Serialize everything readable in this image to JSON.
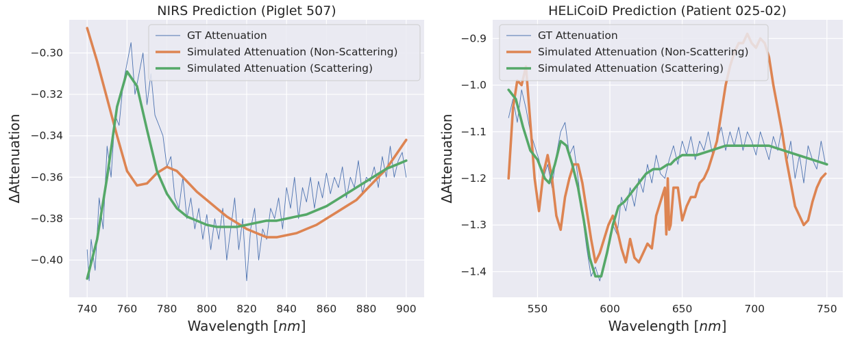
{
  "chart_data": [
    {
      "type": "line",
      "title": "NIRS Prediction (Piglet 507)",
      "xlabel_prefix": "Wavelength [",
      "xlabel_unit": "nm",
      "xlabel_suffix": "]",
      "ylabel": "ΔAttenuation",
      "xlim": [
        731,
        909
      ],
      "ylim": [
        -0.418,
        -0.284
      ],
      "xticks": [
        740,
        760,
        780,
        800,
        820,
        840,
        860,
        880,
        900
      ],
      "xtick_labels": [
        "740",
        "760",
        "780",
        "800",
        "820",
        "840",
        "860",
        "880",
        "900"
      ],
      "yticks": [
        -0.4,
        -0.38,
        -0.36,
        -0.34,
        -0.32,
        -0.3
      ],
      "ytick_labels": [
        "−0.40",
        "−0.38",
        "−0.36",
        "−0.34",
        "−0.32",
        "−0.30"
      ],
      "grid": true,
      "legend_position": "top-right",
      "series": [
        {
          "name": "GT Attenuation",
          "color": "#4c72b0",
          "style": "thin",
          "x": [
            740,
            741,
            742,
            744,
            746,
            748,
            750,
            752,
            754,
            756,
            758,
            760,
            762,
            764,
            766,
            768,
            770,
            772,
            774,
            776,
            778,
            780,
            782,
            784,
            786,
            788,
            790,
            792,
            794,
            796,
            798,
            800,
            802,
            804,
            806,
            808,
            810,
            812,
            814,
            816,
            818,
            820,
            822,
            824,
            826,
            828,
            830,
            832,
            834,
            836,
            838,
            840,
            842,
            844,
            846,
            848,
            850,
            852,
            854,
            856,
            858,
            860,
            862,
            864,
            866,
            868,
            870,
            872,
            874,
            876,
            878,
            880,
            882,
            884,
            886,
            888,
            890,
            892,
            894,
            896,
            898,
            900
          ],
          "y": [
            -0.395,
            -0.41,
            -0.39,
            -0.405,
            -0.37,
            -0.385,
            -0.345,
            -0.36,
            -0.33,
            -0.335,
            -0.315,
            -0.305,
            -0.295,
            -0.32,
            -0.31,
            -0.3,
            -0.325,
            -0.31,
            -0.33,
            -0.335,
            -0.34,
            -0.355,
            -0.35,
            -0.37,
            -0.375,
            -0.36,
            -0.38,
            -0.37,
            -0.385,
            -0.375,
            -0.39,
            -0.378,
            -0.395,
            -0.38,
            -0.39,
            -0.375,
            -0.4,
            -0.385,
            -0.37,
            -0.395,
            -0.38,
            -0.41,
            -0.385,
            -0.375,
            -0.4,
            -0.385,
            -0.39,
            -0.375,
            -0.38,
            -0.37,
            -0.385,
            -0.365,
            -0.375,
            -0.36,
            -0.38,
            -0.365,
            -0.372,
            -0.36,
            -0.375,
            -0.362,
            -0.37,
            -0.358,
            -0.368,
            -0.36,
            -0.365,
            -0.355,
            -0.37,
            -0.36,
            -0.365,
            -0.352,
            -0.368,
            -0.36,
            -0.362,
            -0.355,
            -0.365,
            -0.35,
            -0.36,
            -0.345,
            -0.36,
            -0.352,
            -0.348,
            -0.36
          ]
        },
        {
          "name": "Simulated Attenuation (Non-Scattering)",
          "color": "#dd8452",
          "style": "thick",
          "x": [
            740,
            745,
            750,
            755,
            760,
            765,
            770,
            775,
            780,
            785,
            790,
            795,
            800,
            805,
            810,
            815,
            820,
            825,
            830,
            835,
            840,
            845,
            850,
            855,
            860,
            865,
            870,
            875,
            880,
            885,
            890,
            895,
            900
          ],
          "y": [
            -0.288,
            -0.304,
            -0.322,
            -0.34,
            -0.357,
            -0.364,
            -0.363,
            -0.358,
            -0.355,
            -0.357,
            -0.362,
            -0.367,
            -0.371,
            -0.375,
            -0.379,
            -0.382,
            -0.385,
            -0.387,
            -0.389,
            -0.389,
            -0.388,
            -0.387,
            -0.385,
            -0.383,
            -0.38,
            -0.377,
            -0.374,
            -0.371,
            -0.366,
            -0.361,
            -0.356,
            -0.349,
            -0.342
          ]
        },
        {
          "name": "Simulated Attenuation (Scattering)",
          "color": "#55a868",
          "style": "thick",
          "x": [
            740,
            745,
            750,
            755,
            760,
            765,
            770,
            775,
            780,
            785,
            790,
            795,
            800,
            805,
            810,
            815,
            820,
            825,
            830,
            835,
            840,
            845,
            850,
            855,
            860,
            865,
            870,
            875,
            880,
            885,
            890,
            895,
            900
          ],
          "y": [
            -0.409,
            -0.39,
            -0.36,
            -0.326,
            -0.309,
            -0.316,
            -0.337,
            -0.357,
            -0.368,
            -0.375,
            -0.379,
            -0.381,
            -0.383,
            -0.384,
            -0.384,
            -0.384,
            -0.383,
            -0.382,
            -0.381,
            -0.381,
            -0.38,
            -0.379,
            -0.378,
            -0.376,
            -0.374,
            -0.371,
            -0.368,
            -0.365,
            -0.362,
            -0.359,
            -0.356,
            -0.354,
            -0.352
          ]
        }
      ]
    },
    {
      "type": "line",
      "title": "HELiCoiD Prediction (Patient 025-02)",
      "xlabel_prefix": "Wavelength [",
      "xlabel_unit": "nm",
      "xlabel_suffix": "]",
      "ylabel": "ΔAttenuation",
      "xlim": [
        519,
        761
      ],
      "ylim": [
        -1.455,
        -0.86
      ],
      "xticks": [
        550,
        600,
        650,
        700,
        750
      ],
      "xtick_labels": [
        "550",
        "600",
        "650",
        "700",
        "750"
      ],
      "yticks": [
        -1.4,
        -1.3,
        -1.2,
        -1.1,
        -1.0,
        -0.9
      ],
      "ytick_labels": [
        "−1.4",
        "−1.3",
        "−1.2",
        "−1.1",
        "−1.0",
        "−0.9"
      ],
      "grid": true,
      "legend_position": "top-left",
      "series": [
        {
          "name": "GT Attenuation",
          "color": "#4c72b0",
          "style": "thin",
          "x": [
            530,
            533,
            536,
            539,
            542,
            545,
            548,
            551,
            554,
            557,
            560,
            563,
            566,
            569,
            572,
            575,
            578,
            581,
            584,
            587,
            590,
            593,
            596,
            599,
            602,
            605,
            608,
            611,
            614,
            617,
            620,
            623,
            626,
            629,
            632,
            635,
            638,
            641,
            644,
            647,
            650,
            653,
            656,
            659,
            662,
            665,
            668,
            671,
            674,
            677,
            680,
            683,
            686,
            689,
            692,
            695,
            698,
            701,
            704,
            707,
            710,
            713,
            716,
            719,
            722,
            725,
            728,
            731,
            734,
            737,
            740,
            743,
            746,
            749
          ],
          "y": [
            -1.07,
            -1.03,
            -1.08,
            -1.01,
            -1.05,
            -1.1,
            -1.13,
            -1.16,
            -1.2,
            -1.17,
            -1.22,
            -1.15,
            -1.1,
            -1.08,
            -1.15,
            -1.13,
            -1.2,
            -1.28,
            -1.35,
            -1.41,
            -1.39,
            -1.42,
            -1.38,
            -1.35,
            -1.3,
            -1.32,
            -1.24,
            -1.27,
            -1.22,
            -1.26,
            -1.2,
            -1.23,
            -1.17,
            -1.21,
            -1.15,
            -1.19,
            -1.2,
            -1.16,
            -1.13,
            -1.17,
            -1.12,
            -1.15,
            -1.11,
            -1.16,
            -1.12,
            -1.14,
            -1.1,
            -1.15,
            -1.12,
            -1.09,
            -1.14,
            -1.1,
            -1.13,
            -1.09,
            -1.14,
            -1.1,
            -1.12,
            -1.15,
            -1.1,
            -1.13,
            -1.16,
            -1.11,
            -1.14,
            -1.09,
            -1.17,
            -1.12,
            -1.2,
            -1.15,
            -1.21,
            -1.13,
            -1.16,
            -1.18,
            -1.12,
            -1.17
          ]
        },
        {
          "name": "Simulated Attenuation (Non-Scattering)",
          "color": "#dd8452",
          "style": "thick",
          "x": [
            530,
            533,
            536,
            539,
            542,
            545,
            548,
            551,
            554,
            557,
            560,
            563,
            566,
            569,
            572,
            575,
            578,
            581,
            584,
            587,
            590,
            593,
            596,
            599,
            602,
            605,
            608,
            611,
            614,
            617,
            620,
            623,
            626,
            629,
            632,
            635,
            638,
            639,
            640,
            641,
            642,
            644,
            647,
            650,
            653,
            656,
            659,
            662,
            665,
            668,
            671,
            674,
            677,
            680,
            683,
            686,
            689,
            692,
            695,
            698,
            701,
            704,
            707,
            710,
            713,
            716,
            719,
            722,
            725,
            728,
            731,
            734,
            737,
            740,
            743,
            746,
            749
          ],
          "y": [
            -1.2,
            -1.05,
            -0.99,
            -1.0,
            -0.96,
            -1.08,
            -1.2,
            -1.27,
            -1.19,
            -1.15,
            -1.2,
            -1.28,
            -1.31,
            -1.24,
            -1.2,
            -1.17,
            -1.17,
            -1.21,
            -1.27,
            -1.33,
            -1.38,
            -1.36,
            -1.33,
            -1.3,
            -1.28,
            -1.31,
            -1.35,
            -1.38,
            -1.33,
            -1.37,
            -1.38,
            -1.36,
            -1.34,
            -1.35,
            -1.28,
            -1.25,
            -1.22,
            -1.32,
            -1.2,
            -1.31,
            -1.3,
            -1.22,
            -1.22,
            -1.29,
            -1.26,
            -1.24,
            -1.24,
            -1.21,
            -1.2,
            -1.18,
            -1.15,
            -1.12,
            -1.06,
            -1.0,
            -0.96,
            -0.93,
            -0.91,
            -0.91,
            -0.89,
            -0.91,
            -0.92,
            -0.9,
            -0.91,
            -0.94,
            -1.0,
            -1.05,
            -1.1,
            -1.16,
            -1.21,
            -1.26,
            -1.28,
            -1.3,
            -1.29,
            -1.25,
            -1.22,
            -1.2,
            -1.19
          ]
        },
        {
          "name": "Simulated Attenuation (Scattering)",
          "color": "#55a868",
          "style": "thick",
          "x": [
            530,
            535,
            540,
            545,
            550,
            555,
            558,
            562,
            566,
            570,
            574,
            578,
            582,
            586,
            590,
            594,
            598,
            602,
            606,
            610,
            615,
            620,
            625,
            630,
            635,
            640,
            642,
            645,
            650,
            655,
            660,
            670,
            680,
            690,
            700,
            710,
            720,
            730,
            740,
            750
          ],
          "y": [
            -1.01,
            -1.03,
            -1.09,
            -1.14,
            -1.16,
            -1.2,
            -1.21,
            -1.17,
            -1.12,
            -1.13,
            -1.17,
            -1.22,
            -1.29,
            -1.37,
            -1.41,
            -1.41,
            -1.36,
            -1.3,
            -1.26,
            -1.25,
            -1.23,
            -1.21,
            -1.19,
            -1.18,
            -1.18,
            -1.17,
            -1.17,
            -1.16,
            -1.15,
            -1.15,
            -1.15,
            -1.14,
            -1.13,
            -1.13,
            -1.13,
            -1.13,
            -1.14,
            -1.15,
            -1.16,
            -1.17
          ]
        }
      ]
    }
  ]
}
